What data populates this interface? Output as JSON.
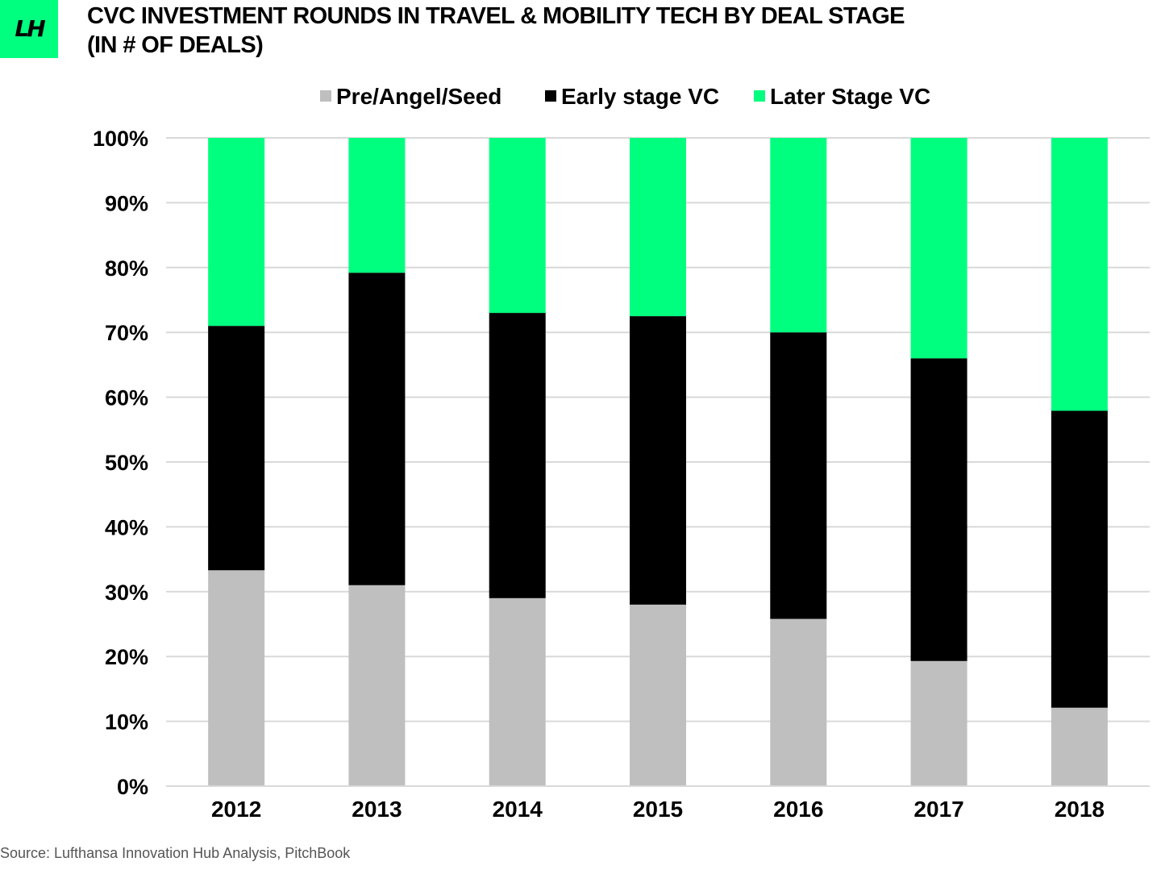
{
  "header": {
    "logo_text": "LH",
    "title_line1": "CVC INVESTMENT ROUNDS IN TRAVEL & MOBILITY TECH BY DEAL STAGE",
    "title_line2": "(IN # OF DEALS)"
  },
  "source": "Source: Lufthansa Innovation Hub Analysis, PitchBook",
  "colors": {
    "brand_green": "#00ff7f",
    "pre_seed": "#bfbfbf",
    "early": "#000000",
    "later": "#00ff7f",
    "grid": "#d9d9d9"
  },
  "chart_data": {
    "type": "bar",
    "stacked": true,
    "normalized": true,
    "categories": [
      "2012",
      "2013",
      "2014",
      "2015",
      "2016",
      "2017",
      "2018"
    ],
    "series": [
      {
        "name": "Pre/Angel/Seed",
        "color": "#bfbfbf",
        "values": [
          33.3,
          31.0,
          29.0,
          28.0,
          25.8,
          19.3,
          12.1
        ]
      },
      {
        "name": "Early stage VC",
        "color": "#000000",
        "values": [
          37.7,
          48.2,
          44.0,
          44.5,
          44.2,
          46.7,
          45.8
        ]
      },
      {
        "name": "Later Stage VC",
        "color": "#00ff7f",
        "values": [
          29.0,
          20.8,
          27.0,
          27.5,
          30.0,
          34.0,
          42.1
        ]
      }
    ],
    "ylim": [
      0,
      100
    ],
    "yticks": [
      "0%",
      "10%",
      "20%",
      "30%",
      "40%",
      "50%",
      "60%",
      "70%",
      "80%",
      "90%",
      "100%"
    ],
    "grid": true,
    "legend_position": "top"
  }
}
